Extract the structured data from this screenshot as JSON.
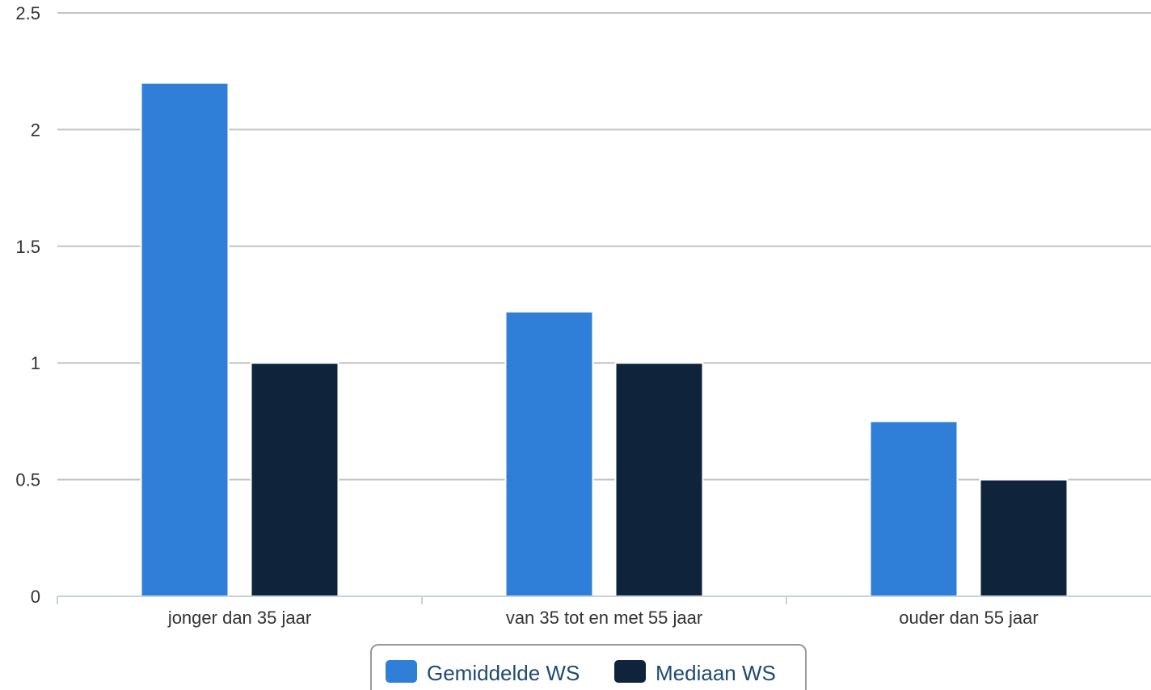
{
  "chart_data": {
    "type": "bar",
    "categories": [
      "jonger dan 35 jaar",
      "van 35 tot en met 55 jaar",
      "ouder dan 55 jaar"
    ],
    "series": [
      {
        "name": "Gemiddelde WS",
        "values": [
          2.2,
          1.22,
          0.75
        ],
        "color": "#2f7fd8"
      },
      {
        "name": "Mediaan WS",
        "values": [
          1,
          1,
          0.5
        ],
        "color": "#0f233a"
      }
    ],
    "yticks": [
      "0",
      "0.5",
      "1",
      "1.5",
      "2",
      "2.5"
    ],
    "ylim": [
      0,
      2.5
    ],
    "grid": true,
    "legend_position": "bottom-center"
  }
}
